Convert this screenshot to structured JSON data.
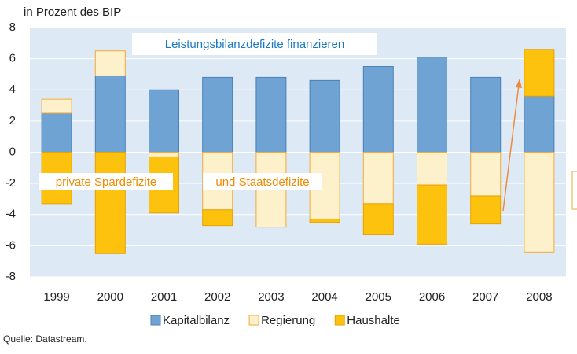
{
  "chart_data": {
    "type": "stacked_bar",
    "ylabel": "in Prozent des BIP",
    "annotations": [
      "Leistungsbilanzdefizite finanzieren",
      "private Spardefizite",
      "und Staatsdefizite"
    ],
    "source": "Quelle: Datastream.",
    "categories": [
      "1999",
      "2000",
      "2001",
      "2002",
      "2003",
      "2004",
      "2005",
      "2006",
      "2007",
      "2008"
    ],
    "series": [
      {
        "name": "Kapitalbilanz",
        "color": "#6fa3d4",
        "values": [
          2.5,
          4.9,
          4.0,
          4.8,
          4.8,
          4.6,
          5.5,
          6.1,
          4.8,
          3.6
        ]
      },
      {
        "name": "Regierung",
        "color": "#fdf1cc",
        "values": [
          0.9,
          1.6,
          -0.3,
          -3.7,
          -4.8,
          -4.3,
          -3.3,
          -2.1,
          -2.8,
          -6.4
        ]
      },
      {
        "name": "Haushalte",
        "color": "#fdc20e",
        "values": [
          -3.3,
          -6.5,
          -3.6,
          -1.0,
          0,
          -0.2,
          -2.0,
          -3.8,
          -1.8,
          3.0
        ]
      }
    ],
    "ylim": [
      -8,
      8
    ],
    "yticks": [
      -8,
      -6,
      -4,
      -2,
      0,
      2,
      4,
      6,
      8
    ],
    "grid": true
  }
}
